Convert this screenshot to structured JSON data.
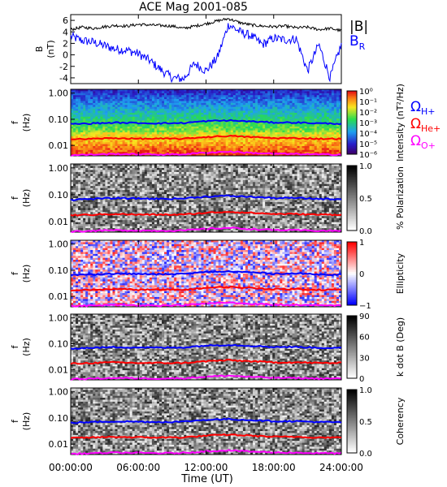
{
  "title": "ACE Mag 2001-085",
  "colors": {
    "br": "#0000ff",
    "bmag": "#000000",
    "h": "#0000ff",
    "he": "#ff0000",
    "o": "#ff00ff"
  },
  "legend_top": {
    "bmag": "|B|",
    "br_main": "B",
    "br_sub": "R"
  },
  "legend_gyro": [
    {
      "main": "Ω",
      "sub": "H+",
      "color": "#0000ff"
    },
    {
      "main": "Ω",
      "sub": "He+",
      "color": "#ff0000"
    },
    {
      "main": "Ω",
      "sub": "O+",
      "color": "#ff00ff"
    }
  ],
  "xaxis": {
    "label": "Time (UT)",
    "ticks": [
      "00:00:00",
      "06:00:00",
      "12:00:00",
      "18:00:00",
      "24:00:00"
    ]
  },
  "chart_data": [
    {
      "type": "line",
      "ylabel_main": "B",
      "ylabel_unit": "(nT)",
      "ylim": [
        -5,
        7
      ],
      "yticks": [
        "6",
        "4",
        "2",
        "0",
        "-2",
        "-4"
      ],
      "x_hours": [
        0,
        1,
        2,
        3,
        4,
        5,
        6,
        7,
        8,
        9,
        10,
        11,
        12,
        13,
        14,
        15,
        16,
        17,
        18,
        19,
        20,
        21,
        22,
        23,
        24
      ],
      "series": [
        {
          "name": "|B|",
          "values": [
            4.4,
            4.8,
            4.6,
            4.9,
            5.1,
            5.0,
            5.3,
            5.2,
            5.1,
            5.0,
            4.6,
            5.0,
            5.4,
            5.9,
            6.3,
            5.6,
            5.2,
            5.0,
            4.9,
            5.0,
            4.7,
            4.8,
            4.4,
            4.6,
            4.2
          ]
        },
        {
          "name": "B_R",
          "values": [
            3.2,
            2.5,
            2.2,
            1.6,
            1.0,
            0.8,
            0.2,
            -1.0,
            -2.6,
            -4.0,
            -4.2,
            -1.5,
            -2.8,
            -0.5,
            5.3,
            4.0,
            3.3,
            1.8,
            2.9,
            2.6,
            2.8,
            -2.8,
            1.8,
            -4.0,
            1.8
          ]
        }
      ]
    },
    {
      "type": "heatmap",
      "ylabel_main": "f",
      "ylabel_unit": "(Hz)",
      "yticks": [
        "1.00",
        "0.10",
        "0.01"
      ],
      "scale": "spectral",
      "cbar_ticks": [
        "10⁰",
        "10⁻¹",
        "10⁻²",
        "10⁻³",
        "10⁻⁴",
        "10⁻⁵",
        "10⁻⁶"
      ],
      "cbar_label": "Intensity (nT²/Hz)"
    },
    {
      "type": "heatmap",
      "ylabel_main": "f",
      "ylabel_unit": "(Hz)",
      "yticks": [
        "1.00",
        "0.10",
        "0.01"
      ],
      "scale": "gray",
      "cbar_ticks": [
        "1.0",
        "0.5",
        "0.0"
      ],
      "cbar_label": "% Polarization"
    },
    {
      "type": "heatmap",
      "ylabel_main": "f",
      "ylabel_unit": "(Hz)",
      "yticks": [
        "1.00",
        "0.10",
        "0.01"
      ],
      "scale": "bwr",
      "cbar_ticks": [
        "1",
        "0",
        "−1"
      ],
      "cbar_label": "Ellipticity"
    },
    {
      "type": "heatmap",
      "ylabel_main": "f",
      "ylabel_unit": "(Hz)",
      "yticks": [
        "1.00",
        "0.10",
        "0.01"
      ],
      "scale": "gray",
      "cbar_ticks": [
        "90",
        "60",
        "30",
        "0"
      ],
      "cbar_label": "k dot B (Deg)"
    },
    {
      "type": "heatmap",
      "ylabel_main": "f",
      "ylabel_unit": "(Hz)",
      "yticks": [
        "1.00",
        "0.10",
        "0.01"
      ],
      "scale": "gray",
      "cbar_ticks": [
        "1.0",
        "0.5",
        "0.0"
      ],
      "cbar_label": "Coherency"
    }
  ],
  "gyro_lines": {
    "x_hours": [
      0,
      2,
      4,
      6,
      8,
      10,
      12,
      14,
      16,
      18,
      20,
      22,
      24
    ],
    "h": [
      0.065,
      0.07,
      0.074,
      0.072,
      0.07,
      0.072,
      0.085,
      0.09,
      0.083,
      0.075,
      0.075,
      0.07,
      0.068
    ],
    "he": [
      0.017,
      0.018,
      0.019,
      0.018,
      0.018,
      0.018,
      0.021,
      0.023,
      0.021,
      0.019,
      0.019,
      0.018,
      0.018
    ],
    "o": [
      0.0042,
      0.0045,
      0.0047,
      0.0046,
      0.0045,
      0.0046,
      0.0053,
      0.0058,
      0.0052,
      0.0048,
      0.0047,
      0.0045,
      0.0045
    ]
  }
}
